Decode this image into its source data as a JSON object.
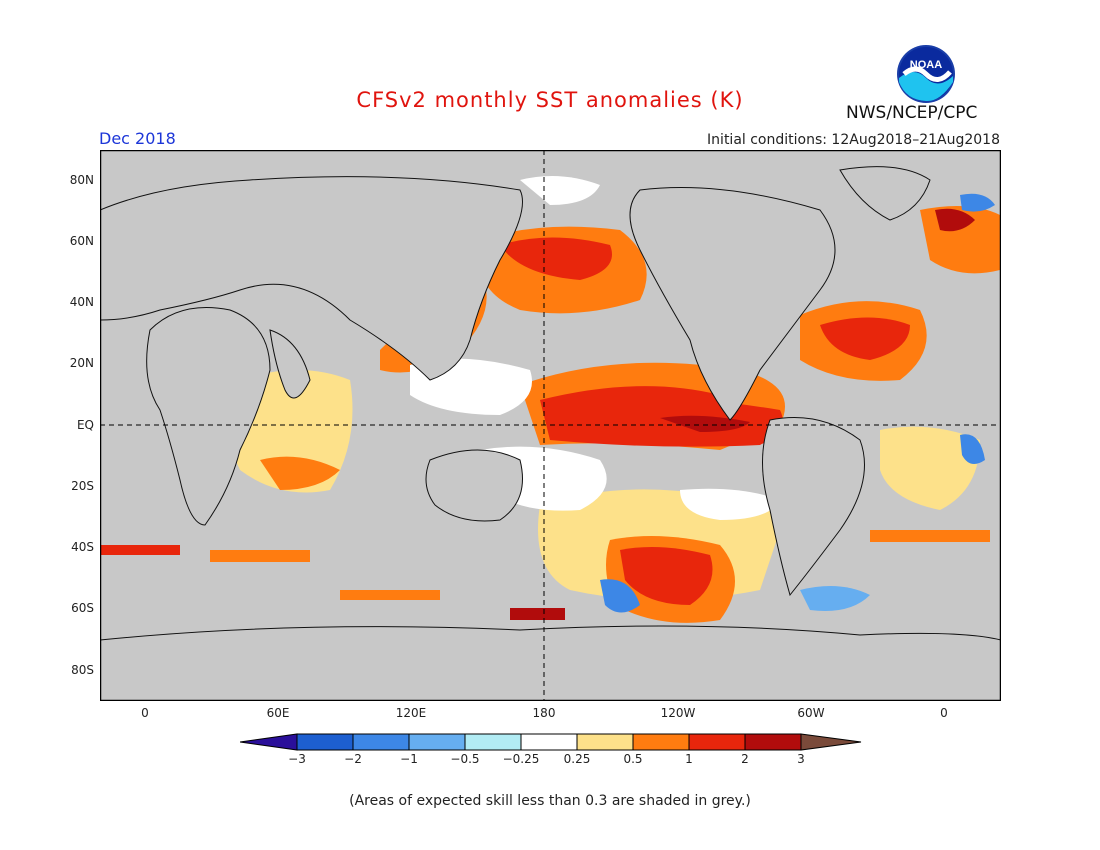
{
  "header": {
    "title": "CFSv2 monthly SST anomalies (K)",
    "org": "NWS/NCEP/CPC",
    "month": "Dec 2018",
    "initial_conditions": "Initial conditions: 12Aug2018–21Aug2018"
  },
  "map": {
    "lat_labels": [
      "80N",
      "60N",
      "40N",
      "20N",
      "EQ",
      "20S",
      "40S",
      "60S",
      "80S"
    ],
    "lon_labels": [
      "0",
      "60E",
      "120E",
      "180",
      "120W",
      "60W",
      "0"
    ],
    "land_color": "#c8c8c8",
    "ocean_color": "#c8c8c8"
  },
  "colorbar": {
    "labels": [
      "−3",
      "−2",
      "−1",
      "−0.5",
      "−0.25",
      "0.25",
      "0.5",
      "1",
      "2",
      "3"
    ],
    "colors": [
      "#2a0f9a",
      "#1d5fd0",
      "#3d87e6",
      "#66aef0",
      "#b2ecf4",
      "#ffffff",
      "#fde18a",
      "#ff7c10",
      "#e8260c",
      "#b10c0c",
      "#7a4a3a"
    ]
  },
  "footer": {
    "note": "(Areas of expected skill less than 0.3 are shaded in grey.)"
  }
}
